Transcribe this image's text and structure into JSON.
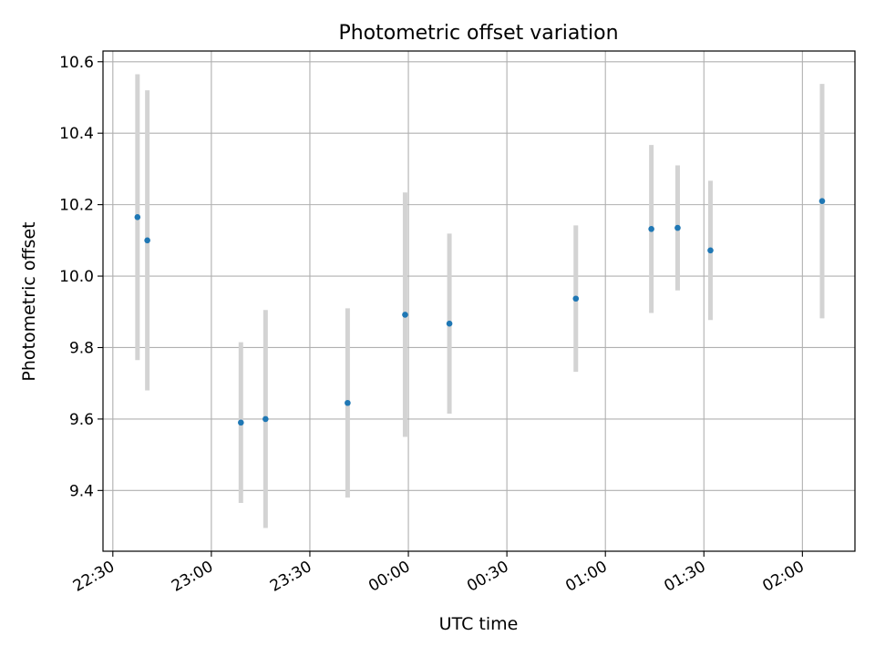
{
  "chart_data": {
    "type": "scatter",
    "title": "Photometric offset variation",
    "xlabel": "UTC time",
    "ylabel": "Photometric offset",
    "x_unit": "time",
    "xlim": [
      "22:27",
      "02:16"
    ],
    "ylim": [
      9.23,
      10.63
    ],
    "x_ticks": [
      "22:30",
      "23:00",
      "23:30",
      "00:00",
      "00:30",
      "01:00",
      "01:30",
      "02:00"
    ],
    "y_ticks": [
      "9.4",
      "9.6",
      "9.8",
      "10.0",
      "10.2",
      "10.4",
      "10.6"
    ],
    "grid": true,
    "colors": {
      "point": "#1f77b4",
      "errorbar": "#d3d3d3",
      "grid": "#b0b0b0"
    },
    "points": [
      {
        "x": "22:37:30",
        "y": 10.165,
        "yerr": 0.4
      },
      {
        "x": "22:40:30",
        "y": 10.1,
        "yerr": 0.42
      },
      {
        "x": "23:09:00",
        "y": 9.59,
        "yerr": 0.225
      },
      {
        "x": "23:16:30",
        "y": 9.6,
        "yerr": 0.305
      },
      {
        "x": "23:41:30",
        "y": 9.645,
        "yerr": 0.265
      },
      {
        "x": "23:59:00",
        "y": 9.892,
        "yerr": 0.342
      },
      {
        "x": "00:12:30",
        "y": 9.867,
        "yerr": 0.252
      },
      {
        "x": "00:51:00",
        "y": 9.937,
        "yerr": 0.205
      },
      {
        "x": "01:14:00",
        "y": 10.132,
        "yerr": 0.235
      },
      {
        "x": "01:22:00",
        "y": 10.135,
        "yerr": 0.175
      },
      {
        "x": "01:32:00",
        "y": 10.072,
        "yerr": 0.195
      },
      {
        "x": "02:06:00",
        "y": 10.21,
        "yerr": 0.328
      }
    ]
  }
}
